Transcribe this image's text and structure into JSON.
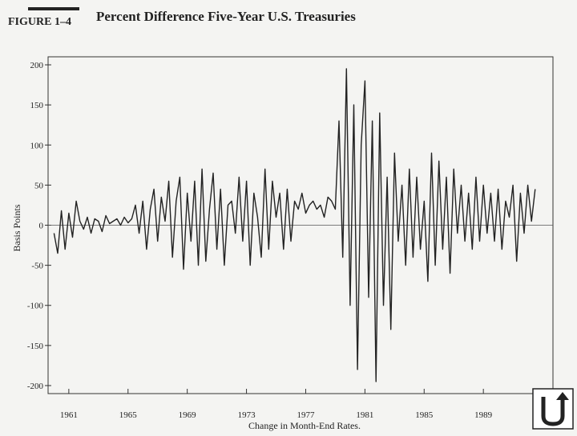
{
  "chart_data": {
    "type": "line",
    "figure_label": "FIGURE 1–4",
    "title": "Percent Difference Five-Year U.S. Treasuries",
    "xlabel": "Change in Month-End Rates.",
    "ylabel": "Basis Points",
    "xlim": [
      1959.6,
      1993.7
    ],
    "ylim": [
      -210,
      210
    ],
    "xticks": [
      1961,
      1965,
      1969,
      1973,
      1977,
      1981,
      1985,
      1989
    ],
    "yticks": [
      200,
      150,
      100,
      50,
      0,
      -50,
      -100,
      -150,
      -200
    ],
    "color": "#222222",
    "x": [
      1960,
      1960.25,
      1960.5,
      1960.75,
      1961,
      1961.25,
      1961.5,
      1961.75,
      1962,
      1962.25,
      1962.5,
      1962.75,
      1963,
      1963.25,
      1963.5,
      1963.75,
      1964,
      1964.25,
      1964.5,
      1964.75,
      1965,
      1965.25,
      1965.5,
      1965.75,
      1966,
      1966.25,
      1966.5,
      1966.75,
      1967,
      1967.25,
      1967.5,
      1967.75,
      1968,
      1968.25,
      1968.5,
      1968.75,
      1969,
      1969.25,
      1969.5,
      1969.75,
      1970,
      1970.25,
      1970.5,
      1970.75,
      1971,
      1971.25,
      1971.5,
      1971.75,
      1972,
      1972.25,
      1972.5,
      1972.75,
      1973,
      1973.25,
      1973.5,
      1973.75,
      1974,
      1974.25,
      1974.5,
      1974.75,
      1975,
      1975.25,
      1975.5,
      1975.75,
      1976,
      1976.25,
      1976.5,
      1976.75,
      1977,
      1977.25,
      1977.5,
      1977.75,
      1978,
      1978.25,
      1978.5,
      1978.75,
      1979,
      1979.25,
      1979.5,
      1979.75,
      1980,
      1980.25,
      1980.5,
      1980.75,
      1981,
      1981.25,
      1981.5,
      1981.75,
      1982,
      1982.25,
      1982.5,
      1982.75,
      1983,
      1983.25,
      1983.5,
      1983.75,
      1984,
      1984.25,
      1984.5,
      1984.75,
      1985,
      1985.25,
      1985.5,
      1985.75,
      1986,
      1986.25,
      1986.5,
      1986.75,
      1987,
      1987.25,
      1987.5,
      1987.75,
      1988,
      1988.25,
      1988.5,
      1988.75,
      1989,
      1989.25,
      1989.5,
      1989.75,
      1990,
      1990.25,
      1990.5,
      1990.75,
      1991,
      1991.25,
      1991.5,
      1991.75,
      1992,
      1992.25,
      1992.5
    ],
    "values": [
      -10,
      -35,
      18,
      -30,
      15,
      -15,
      30,
      5,
      -5,
      10,
      -10,
      8,
      5,
      -8,
      12,
      2,
      5,
      8,
      0,
      10,
      3,
      8,
      25,
      -10,
      30,
      -30,
      20,
      45,
      -20,
      35,
      5,
      55,
      -40,
      30,
      60,
      -55,
      40,
      -20,
      55,
      -50,
      70,
      -45,
      20,
      65,
      -30,
      45,
      -50,
      25,
      30,
      -10,
      60,
      -20,
      55,
      -50,
      40,
      10,
      -40,
      70,
      -30,
      55,
      10,
      40,
      -30,
      45,
      -20,
      30,
      20,
      40,
      15,
      25,
      30,
      20,
      25,
      10,
      35,
      30,
      20,
      130,
      -40,
      195,
      -100,
      150,
      -180,
      100,
      180,
      -90,
      130,
      -195,
      140,
      -100,
      60,
      -130,
      90,
      -20,
      50,
      -50,
      70,
      -40,
      60,
      -30,
      30,
      -70,
      90,
      -50,
      80,
      -30,
      60,
      -60,
      70,
      -10,
      50,
      -20,
      40,
      -30,
      60,
      -20,
      50,
      -10,
      40,
      -20,
      45,
      -30,
      30,
      10,
      50,
      -45,
      40,
      -10,
      50,
      5,
      45
    ]
  }
}
